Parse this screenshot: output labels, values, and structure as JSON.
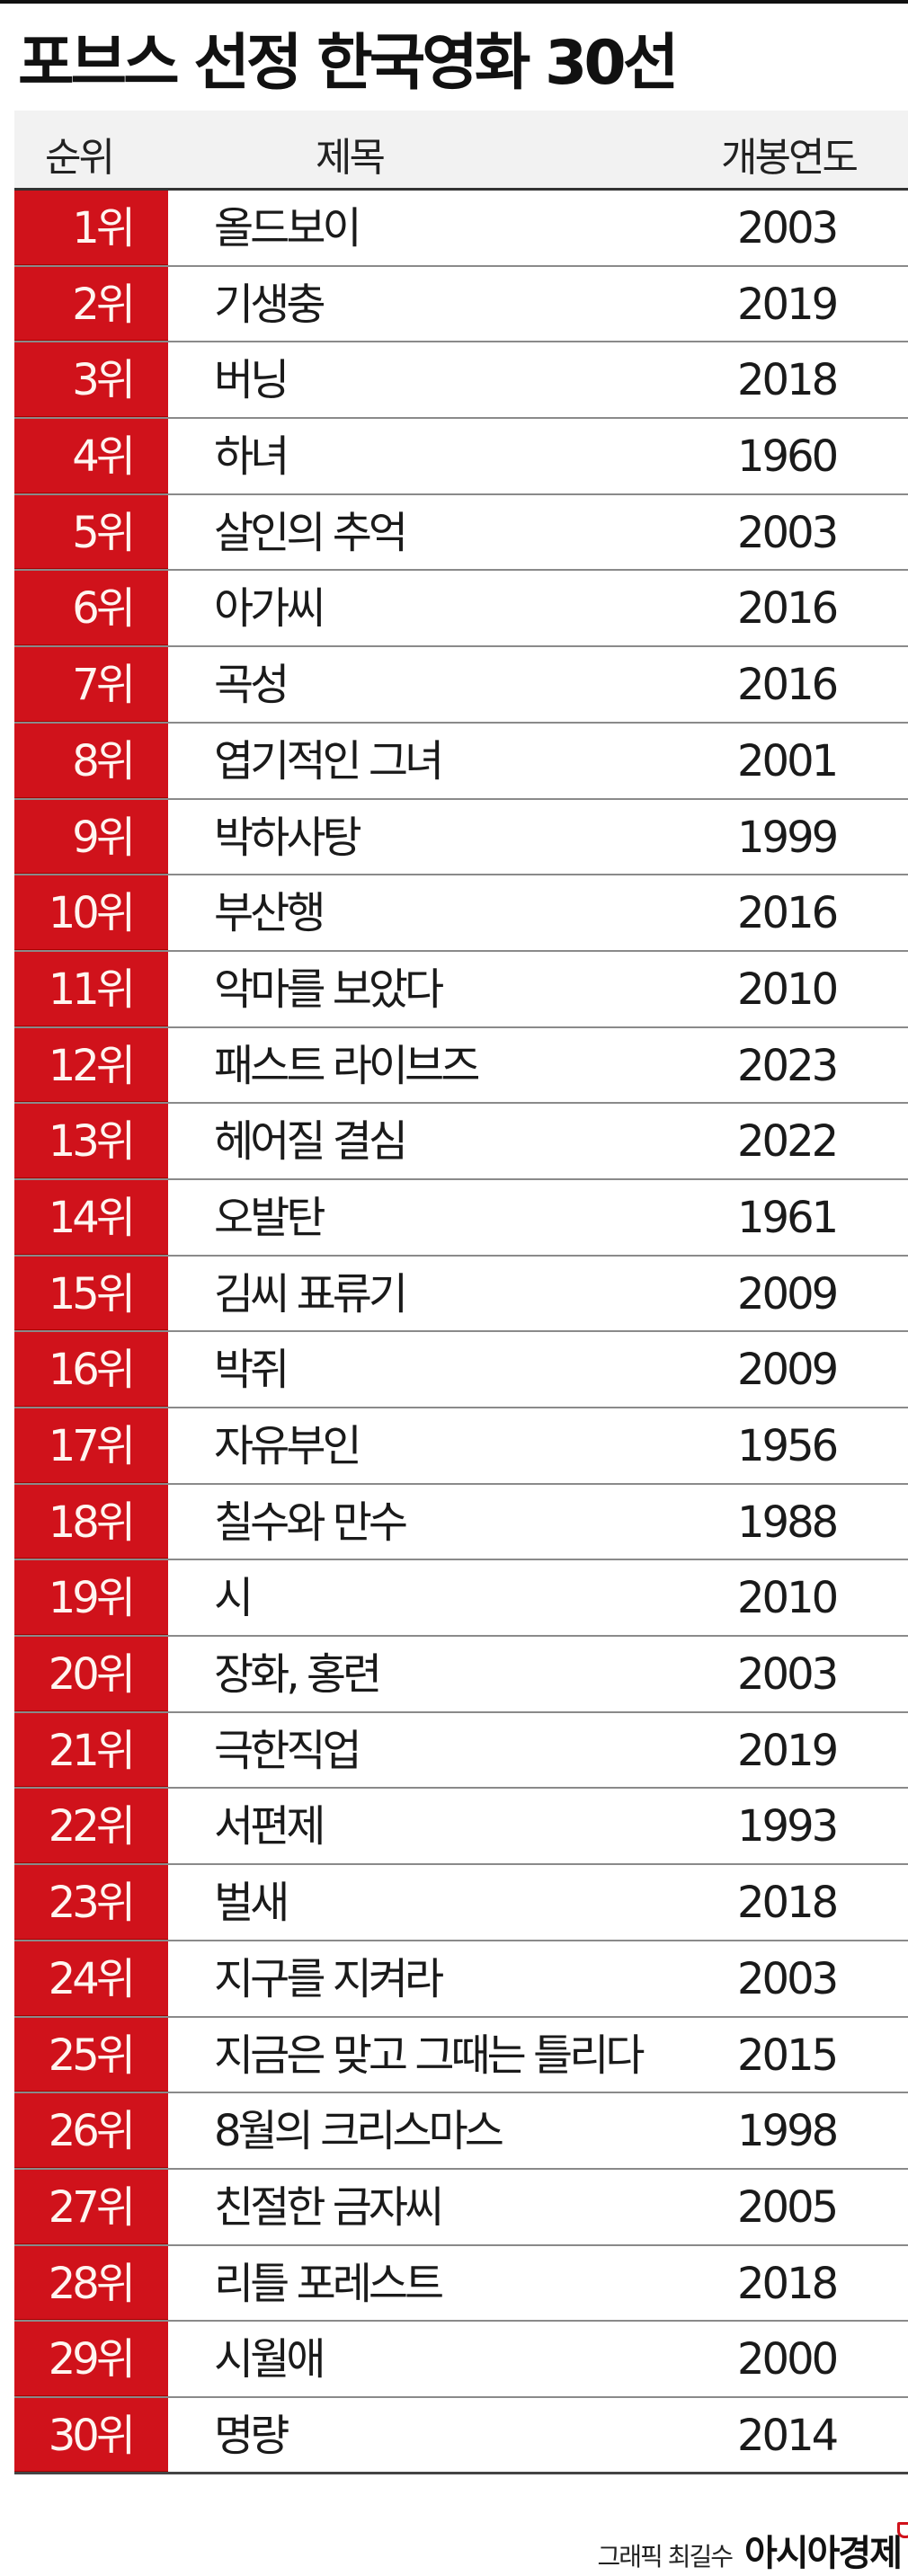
{
  "title": "포브스 선정 한국영화 30선",
  "headers": {
    "rank": "순위",
    "title": "제목",
    "year": "개봉연도"
  },
  "colors": {
    "accent": "#d0121b"
  },
  "rows": [
    {
      "rank": "1위",
      "title": "올드보이",
      "year": "2003"
    },
    {
      "rank": "2위",
      "title": "기생충",
      "year": "2019"
    },
    {
      "rank": "3위",
      "title": "버닝",
      "year": "2018"
    },
    {
      "rank": "4위",
      "title": "하녀",
      "year": "1960"
    },
    {
      "rank": "5위",
      "title": "살인의 추억",
      "year": "2003"
    },
    {
      "rank": "6위",
      "title": "아가씨",
      "year": "2016"
    },
    {
      "rank": "7위",
      "title": "곡성",
      "year": "2016"
    },
    {
      "rank": "8위",
      "title": "엽기적인 그녀",
      "year": "2001"
    },
    {
      "rank": "9위",
      "title": "박하사탕",
      "year": "1999"
    },
    {
      "rank": "10위",
      "title": "부산행",
      "year": "2016"
    },
    {
      "rank": "11위",
      "title": "악마를 보았다",
      "year": "2010"
    },
    {
      "rank": "12위",
      "title": "패스트 라이브즈",
      "year": "2023"
    },
    {
      "rank": "13위",
      "title": "헤어질 결심",
      "year": "2022"
    },
    {
      "rank": "14위",
      "title": "오발탄",
      "year": "1961"
    },
    {
      "rank": "15위",
      "title": "김씨 표류기",
      "year": "2009"
    },
    {
      "rank": "16위",
      "title": "박쥐",
      "year": "2009"
    },
    {
      "rank": "17위",
      "title": "자유부인",
      "year": "1956"
    },
    {
      "rank": "18위",
      "title": "칠수와 만수",
      "year": "1988"
    },
    {
      "rank": "19위",
      "title": "시",
      "year": "2010"
    },
    {
      "rank": "20위",
      "title": "장화, 홍련",
      "year": "2003"
    },
    {
      "rank": "21위",
      "title": "극한직업",
      "year": "2019"
    },
    {
      "rank": "22위",
      "title": "서편제",
      "year": "1993"
    },
    {
      "rank": "23위",
      "title": "벌새",
      "year": "2018"
    },
    {
      "rank": "24위",
      "title": "지구를 지켜라",
      "year": "2003"
    },
    {
      "rank": "25위",
      "title": "지금은 맞고 그때는 틀리다",
      "year": "2015"
    },
    {
      "rank": "26위",
      "title": "8월의 크리스마스",
      "year": "1998"
    },
    {
      "rank": "27위",
      "title": "친절한 금자씨",
      "year": "2005"
    },
    {
      "rank": "28위",
      "title": "리틀 포레스트",
      "year": "2018"
    },
    {
      "rank": "29위",
      "title": "시월애",
      "year": "2000"
    },
    {
      "rank": "30위",
      "title": "명량",
      "year": "2014"
    }
  ],
  "footer": {
    "credit": "그래픽 최길수",
    "logo": "아시아경제"
  }
}
